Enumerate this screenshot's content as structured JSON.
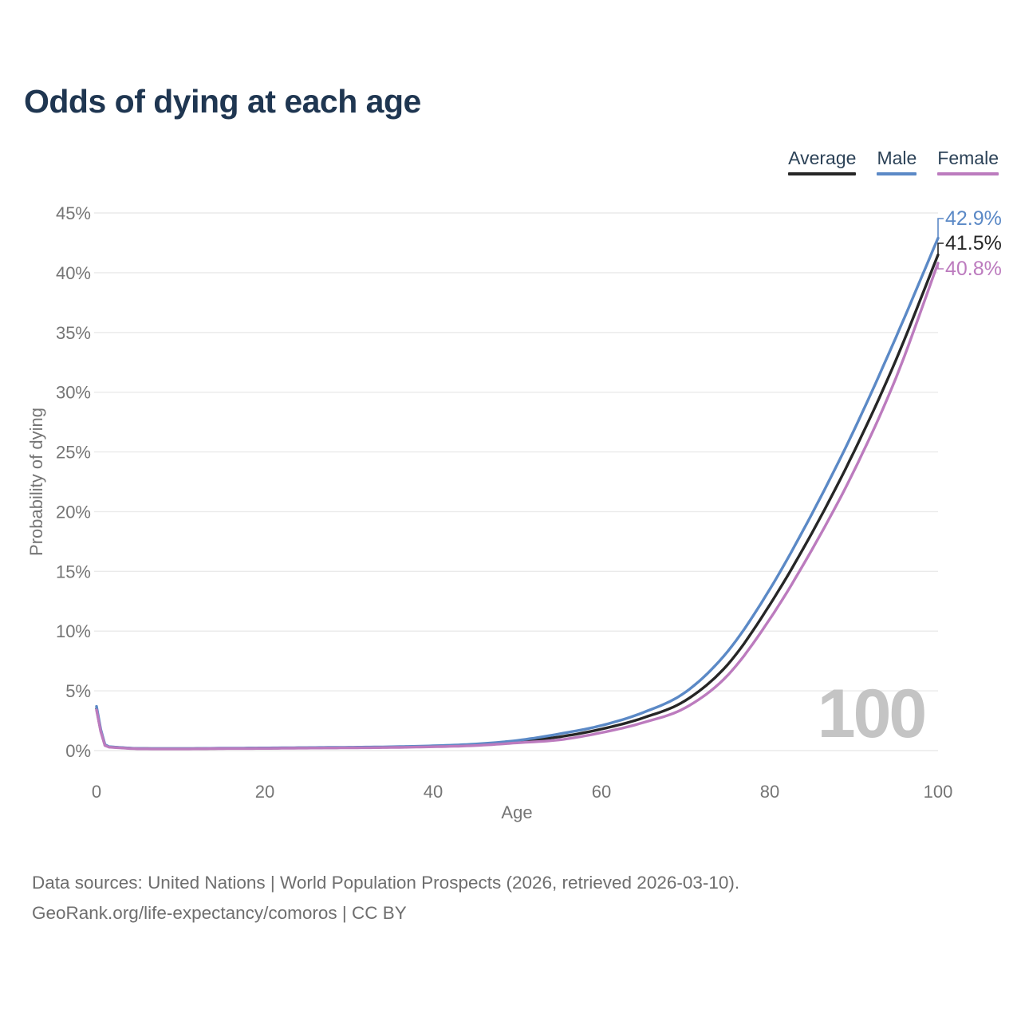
{
  "title": "Odds of dying at each age",
  "footer": {
    "line1": "Data sources: United Nations | World Population Prospects (2026, retrieved 2026-03-10).",
    "line2": "GeoRank.org/life-expectancy/comoros | CC BY"
  },
  "colors": {
    "title": "#1f3651",
    "legend_text": "#2c4257",
    "axis_text": "#757575",
    "gridline": "#eaeaea",
    "watermark": "#c4c4c4",
    "footer_text": "#6e6e6e"
  },
  "chart_data": {
    "type": "line",
    "title": "Odds of dying at each age",
    "xlabel": "Age",
    "ylabel": "Probability of dying",
    "xlim": [
      0,
      100
    ],
    "ylim": [
      0,
      45
    ],
    "xticks": [
      0,
      20,
      40,
      60,
      80,
      100
    ],
    "yticks": [
      0,
      5,
      10,
      15,
      20,
      25,
      30,
      35,
      40,
      45
    ],
    "ytick_suffix": "%",
    "grid": "horizontal",
    "legend_position": "top-right",
    "watermark": "100",
    "ages": [
      0,
      1,
      2,
      5,
      10,
      15,
      20,
      25,
      30,
      35,
      40,
      45,
      50,
      55,
      60,
      65,
      70,
      75,
      80,
      85,
      90,
      95,
      100
    ],
    "series": [
      {
        "name": "Average",
        "color": "#262626",
        "end_label": "41.5%",
        "values": [
          3.5,
          0.45,
          0.28,
          0.17,
          0.16,
          0.18,
          0.2,
          0.23,
          0.25,
          0.29,
          0.36,
          0.48,
          0.75,
          1.15,
          1.8,
          2.75,
          4.2,
          7.2,
          12.2,
          18.2,
          25.0,
          32.7,
          41.5
        ]
      },
      {
        "name": "Male",
        "color": "#5b89c6",
        "end_label": "42.9%",
        "values": [
          3.7,
          0.5,
          0.3,
          0.18,
          0.17,
          0.2,
          0.22,
          0.25,
          0.28,
          0.32,
          0.4,
          0.55,
          0.85,
          1.4,
          2.1,
          3.2,
          4.9,
          8.3,
          13.5,
          19.8,
          26.8,
          34.6,
          42.9
        ]
      },
      {
        "name": "Female",
        "color": "#bc7bbe",
        "end_label": "40.8%",
        "values": [
          3.4,
          0.42,
          0.26,
          0.15,
          0.14,
          0.17,
          0.18,
          0.21,
          0.23,
          0.26,
          0.32,
          0.42,
          0.65,
          0.9,
          1.5,
          2.35,
          3.6,
          6.3,
          11.0,
          16.8,
          23.4,
          31.2,
          40.8
        ]
      }
    ]
  }
}
